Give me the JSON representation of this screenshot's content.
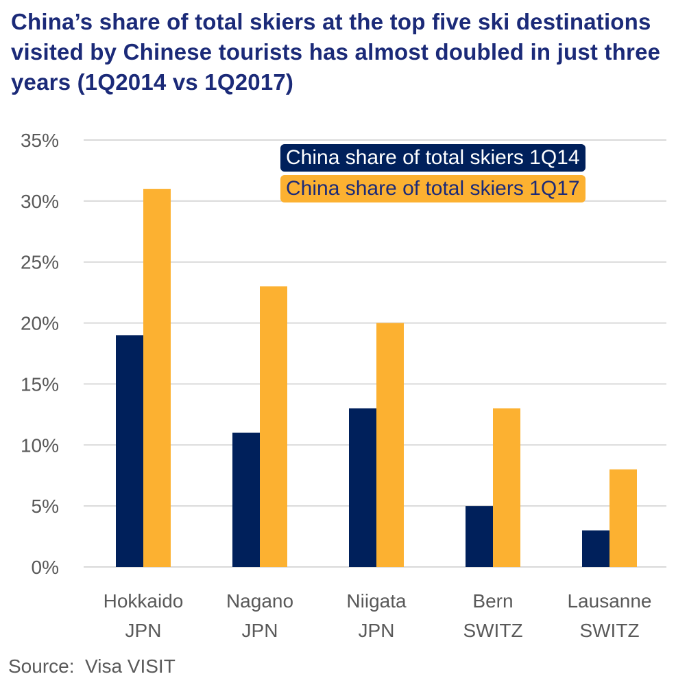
{
  "chart_data": {
    "type": "bar",
    "title": "China’s share of total skiers at the top five ski destinations visited by Chinese tourists has almost doubled in just three years (1Q2014 vs 1Q2017)",
    "xlabel": "",
    "ylabel": "",
    "ylim": [
      0,
      35
    ],
    "yticks": [
      0,
      5,
      10,
      15,
      20,
      25,
      30,
      35
    ],
    "ytick_labels": [
      "0%",
      "5%",
      "10%",
      "15%",
      "20%",
      "25%",
      "30%",
      "35%"
    ],
    "grid": true,
    "legend_position": "top-right",
    "categories": [
      {
        "line1": "Hokkaido",
        "line2": "JPN"
      },
      {
        "line1": "Nagano",
        "line2": "JPN"
      },
      {
        "line1": "Niigata",
        "line2": "JPN"
      },
      {
        "line1": "Bern",
        "line2": "SWITZ"
      },
      {
        "line1": "Lausanne",
        "line2": "SWITZ"
      }
    ],
    "series": [
      {
        "name": "China share of total skiers 1Q14",
        "color": "#00205b",
        "text_color": "#ffffff",
        "values": [
          19,
          11,
          13,
          5,
          3
        ]
      },
      {
        "name": "China share of total skiers 1Q17",
        "color": "#fcb131",
        "text_color": "#1b2a78",
        "values": [
          31,
          23,
          20,
          13,
          8
        ]
      }
    ],
    "source": "Source:  Visa VISIT"
  }
}
